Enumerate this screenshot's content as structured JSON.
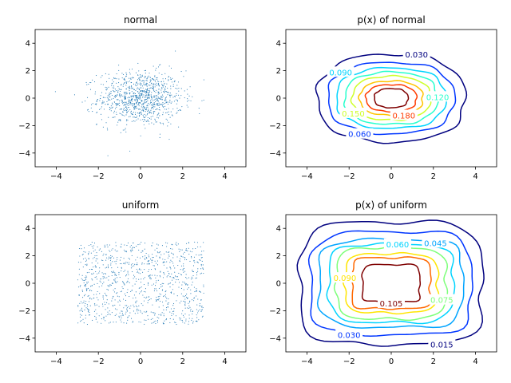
{
  "chart_data": [
    {
      "type": "scatter",
      "title": "normal",
      "xlim": [
        -5,
        5
      ],
      "ylim": [
        -5,
        5
      ],
      "xticks": [
        -4,
        -2,
        0,
        2,
        4
      ],
      "yticks": [
        -4,
        -2,
        0,
        2,
        4
      ],
      "points": {
        "count": 1000,
        "distribution": "standard normal in x and y",
        "color": "#1f77b4"
      }
    },
    {
      "type": "contour",
      "title": "p(x) of normal",
      "xlim": [
        -5,
        5
      ],
      "ylim": [
        -5,
        5
      ],
      "xticks": [
        -4,
        -2,
        0,
        2,
        4
      ],
      "yticks": [
        -4,
        -2,
        0,
        2,
        4
      ],
      "levels": [
        {
          "value": 0.03,
          "label": "0.030",
          "rx": 3.5,
          "ry": 3.2,
          "color": "#00007f",
          "show_label": true,
          "label_x": 1.2,
          "label_y": 3.2
        },
        {
          "value": 0.06,
          "label": "0.060",
          "rx": 3.0,
          "ry": 2.6,
          "color": "#0036ff",
          "show_label": true,
          "label_x": -1.5,
          "label_y": -2.6
        },
        {
          "value": 0.09,
          "label": "0.090",
          "rx": 2.6,
          "ry": 2.2,
          "color": "#00d4ff",
          "show_label": true,
          "label_x": -2.4,
          "label_y": 1.9
        },
        {
          "value": 0.12,
          "label": "0.120",
          "rx": 2.2,
          "ry": 1.9,
          "color": "#29ffce",
          "show_label": true,
          "label_x": 2.2,
          "label_y": 0.1
        },
        {
          "value": 0.15,
          "label": "0.150",
          "rx": 1.85,
          "ry": 1.6,
          "color": "#ceff29",
          "show_label": true,
          "label_x": -1.8,
          "label_y": -1.1
        },
        {
          "value": 0.15,
          "label": "",
          "rx": 1.5,
          "ry": 1.25,
          "color": "#ffc400",
          "show_label": false,
          "label_x": 0,
          "label_y": 0
        },
        {
          "value": 0.18,
          "label": "0.180",
          "rx": 1.2,
          "ry": 0.98,
          "color": "#ff3b00",
          "show_label": true,
          "label_x": 0.6,
          "label_y": -1.25
        },
        {
          "value": 0.2,
          "label": "",
          "rx": 0.8,
          "ry": 0.7,
          "color": "#7f0000",
          "show_label": false,
          "label_x": 0,
          "label_y": 0
        }
      ]
    },
    {
      "type": "scatter",
      "title": "uniform",
      "xlim": [
        -5,
        5
      ],
      "ylim": [
        -5,
        5
      ],
      "xticks": [
        -4,
        -2,
        0,
        2,
        4
      ],
      "yticks": [
        -4,
        -2,
        0,
        2,
        4
      ],
      "points": {
        "count": 1000,
        "distribution": "uniform on [-3,3] x [-3,3]",
        "color": "#1f77b4"
      }
    },
    {
      "type": "contour",
      "title": "p(x) of uniform",
      "xlim": [
        -5,
        5
      ],
      "ylim": [
        -5,
        5
      ],
      "xticks": [
        -4,
        -2,
        0,
        2,
        4
      ],
      "yticks": [
        -4,
        -2,
        0,
        2,
        4
      ],
      "levels": [
        {
          "value": 0.015,
          "label": "0.015",
          "rx": 4.3,
          "ry": 4.45,
          "color": "#00007f",
          "show_label": true,
          "label_x": 2.4,
          "label_y": -4.45
        },
        {
          "value": 0.03,
          "label": "0.030",
          "rx": 3.8,
          "ry": 3.75,
          "color": "#0036ff",
          "show_label": true,
          "label_x": -2.0,
          "label_y": -3.75
        },
        {
          "value": 0.045,
          "label": "0.045",
          "rx": 3.4,
          "ry": 3.2,
          "color": "#00a4ff",
          "show_label": true,
          "label_x": 2.1,
          "label_y": 2.95
        },
        {
          "value": 0.06,
          "label": "0.060",
          "rx": 2.95,
          "ry": 2.85,
          "color": "#00d4ff",
          "show_label": true,
          "label_x": 0.3,
          "label_y": 2.85
        },
        {
          "value": 0.075,
          "label": "0.075",
          "rx": 2.6,
          "ry": 2.6,
          "color": "#7dff7a",
          "show_label": true,
          "label_x": 2.4,
          "label_y": -1.2
        },
        {
          "value": 0.09,
          "label": "0.090",
          "rx": 2.2,
          "ry": 2.15,
          "color": "#ffe500",
          "show_label": true,
          "label_x": -2.2,
          "label_y": 0.4
        },
        {
          "value": 0.1,
          "label": "",
          "rx": 1.85,
          "ry": 1.85,
          "color": "#ff6800",
          "show_label": false,
          "label_x": 0,
          "label_y": 0
        },
        {
          "value": 0.105,
          "label": "0.105",
          "rx": 1.35,
          "ry": 1.35,
          "color": "#7f0000",
          "show_label": true,
          "label_x": 0.0,
          "label_y": -1.45
        }
      ]
    }
  ]
}
